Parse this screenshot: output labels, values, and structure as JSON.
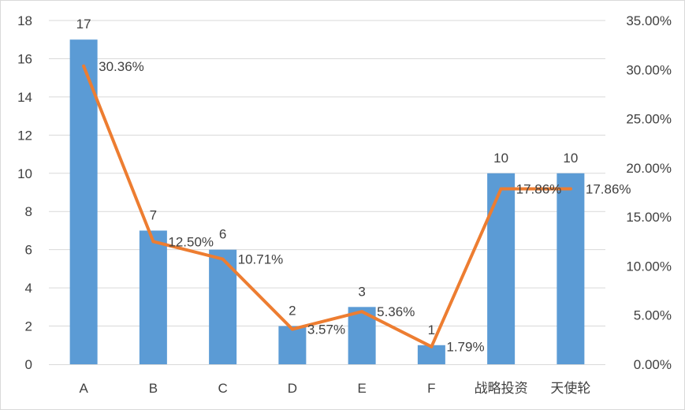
{
  "chart_data": {
    "type": "bar",
    "categories": [
      "A",
      "B",
      "C",
      "D",
      "E",
      "F",
      "战略投资",
      "天使轮"
    ],
    "series": [
      {
        "type": "bar",
        "values": [
          17,
          7,
          6,
          2,
          3,
          1,
          10,
          10
        ],
        "color": "#5b9bd5",
        "axis": "left"
      },
      {
        "type": "line",
        "values": [
          30.36,
          12.5,
          10.71,
          3.57,
          5.36,
          1.79,
          17.86,
          17.86
        ],
        "color": "#ed7d31",
        "axis": "right"
      }
    ],
    "bar_labels": [
      "17",
      "7",
      "6",
      "2",
      "3",
      "1",
      "10",
      "10"
    ],
    "line_labels": [
      "30.36%",
      "12.50%",
      "10.71%",
      "3.57%",
      "5.36%",
      "1.79%",
      "17.86%",
      "17.86%"
    ],
    "y_left": {
      "ylim": [
        0,
        18
      ],
      "ticks": [
        "0",
        "2",
        "4",
        "6",
        "8",
        "10",
        "12",
        "14",
        "16",
        "18"
      ]
    },
    "y_right": {
      "ylim": [
        0,
        35
      ],
      "ticks": [
        "0.00%",
        "5.00%",
        "10.00%",
        "15.00%",
        "20.00%",
        "25.00%",
        "30.00%",
        "35.00%"
      ]
    },
    "grid": true,
    "legend": false
  }
}
